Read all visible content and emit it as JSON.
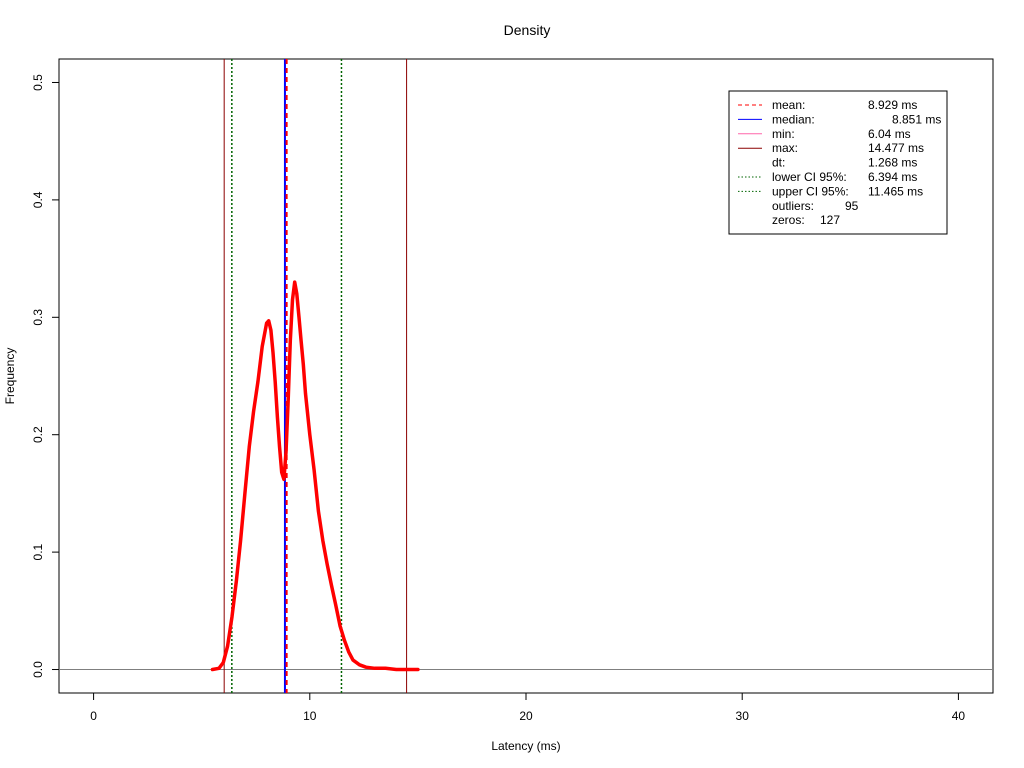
{
  "chart_data": {
    "type": "line",
    "title": "Density",
    "xlabel": "Latency (ms)",
    "ylabel": "Frequency",
    "xlim": [
      -1.6,
      41.6
    ],
    "ylim": [
      -0.02,
      0.52
    ],
    "x_ticks": [
      0,
      10,
      20,
      30,
      40
    ],
    "y_ticks": [
      0.0,
      0.1,
      0.2,
      0.3,
      0.4,
      0.5
    ],
    "x_tick_labels": [
      "0",
      "10",
      "20",
      "30",
      "40"
    ],
    "y_tick_labels": [
      "0.0",
      "0.1",
      "0.2",
      "0.3",
      "0.4",
      "0.5"
    ],
    "grid": false,
    "legend_position": "top-right",
    "colors": {
      "density": "#ff0000",
      "mean": "#ff0000",
      "median": "#0000ff",
      "min": "#8b0000",
      "max": "#8b0000",
      "ci": "#006400",
      "baseline": "#7f7f7f"
    },
    "series": [
      {
        "x": [
          5.5,
          5.8,
          6.0,
          6.2,
          6.4,
          6.6,
          6.8,
          7.0,
          7.2,
          7.4,
          7.6,
          7.8,
          8.0,
          8.1,
          8.2,
          8.3,
          8.4,
          8.5,
          8.6,
          8.7,
          8.8,
          8.9,
          9.0,
          9.1,
          9.2,
          9.3,
          9.4,
          9.5,
          9.6,
          9.7,
          9.8,
          10.0,
          10.2,
          10.4,
          10.6,
          10.8,
          11.0,
          11.2,
          11.4,
          11.6,
          11.8,
          12.0,
          12.3,
          12.6,
          13.0,
          13.5,
          14.0,
          14.5,
          15.0
        ],
        "y": [
          0.0,
          0.001,
          0.006,
          0.02,
          0.045,
          0.075,
          0.11,
          0.15,
          0.19,
          0.22,
          0.245,
          0.275,
          0.295,
          0.297,
          0.289,
          0.27,
          0.245,
          0.215,
          0.19,
          0.168,
          0.162,
          0.185,
          0.23,
          0.28,
          0.315,
          0.33,
          0.32,
          0.3,
          0.28,
          0.26,
          0.235,
          0.2,
          0.17,
          0.135,
          0.11,
          0.09,
          0.072,
          0.055,
          0.037,
          0.025,
          0.015,
          0.008,
          0.004,
          0.002,
          0.001,
          0.001,
          0.0,
          0.0,
          0.0
        ]
      }
    ],
    "vertical_lines": {
      "mean": 8.929,
      "median": 8.851,
      "min": 6.04,
      "max": 14.477,
      "lower_ci": 6.394,
      "upper_ci": 11.465
    },
    "legend": [
      {
        "label": "mean:",
        "value": "8.929 ms",
        "style": "dashed-red"
      },
      {
        "label": "median:",
        "value": "8.851 ms",
        "style": "solid-blue"
      },
      {
        "label": "min:",
        "value": "6.04 ms",
        "style": "solid-pink"
      },
      {
        "label": "max:",
        "value": "14.477 ms",
        "style": "solid-darkred"
      },
      {
        "label": "dt:",
        "value": "1.268 ms",
        "style": "none"
      },
      {
        "label": "lower CI 95%:",
        "value": "6.394 ms",
        "style": "dotted-green"
      },
      {
        "label": "upper CI 95%:",
        "value": "11.465 ms",
        "style": "dotted-green"
      },
      {
        "label": "outliers:",
        "value": "95",
        "style": "none"
      },
      {
        "label": "zeros:",
        "value": "127",
        "style": "none"
      }
    ]
  }
}
